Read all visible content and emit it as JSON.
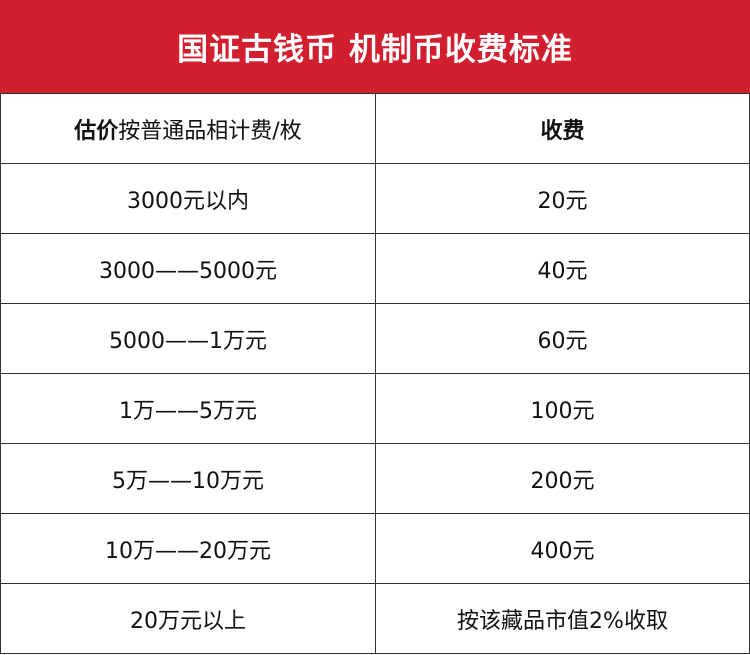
{
  "title": "国证古钱币 机制币收费标准",
  "header": {
    "col1_bold": "估价",
    "col1_rest": "按普通品相计费/枚",
    "col2": "收费"
  },
  "rows": [
    {
      "range": "3000元以内",
      "fee": "20元"
    },
    {
      "range": "3000——5000元",
      "fee": "40元"
    },
    {
      "range": "5000——1万元",
      "fee": "60元"
    },
    {
      "range": "1万——5万元",
      "fee": "100元"
    },
    {
      "range": "5万——10万元",
      "fee": "200元"
    },
    {
      "range": "10万——20万元",
      "fee": "400元"
    },
    {
      "range": "20万元以上",
      "fee": "按该藏品市值2%收取"
    }
  ],
  "colors": {
    "banner": "#d21f30",
    "banner_text": "#ffffff",
    "border": "#333333"
  }
}
